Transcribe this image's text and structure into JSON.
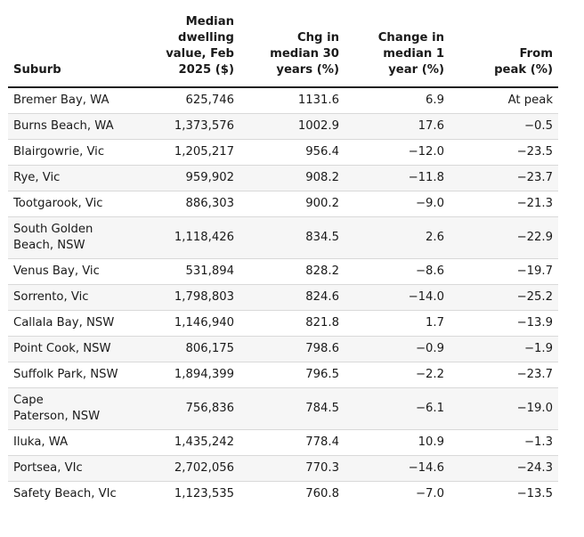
{
  "table": {
    "headers": [
      "Suburb",
      "Median dwelling value, Feb 2025 ($)",
      "Chg in median 30 years (%)",
      "Change in median 1 year (%)",
      "From peak (%)"
    ],
    "header_lines": [
      [
        "Suburb"
      ],
      [
        "Median",
        "dwelling",
        "value, Feb",
        "2025 ($)"
      ],
      [
        "Chg in",
        "median 30",
        "years (%)"
      ],
      [
        "Change in",
        "median 1",
        "year (%)"
      ],
      [
        "From",
        "peak (%)"
      ]
    ],
    "rows": [
      {
        "suburb": "Bremer Bay, WA",
        "value": "625,746",
        "chg30": "1131.6",
        "chg1": "6.9",
        "peak": "At peak"
      },
      {
        "suburb": "Burns Beach, WA",
        "value": "1,373,576",
        "chg30": "1002.9",
        "chg1": "17.6",
        "peak": "−0.5"
      },
      {
        "suburb": "Blairgowrie, Vic",
        "value": "1,205,217",
        "chg30": "956.4",
        "chg1": "−12.0",
        "peak": "−23.5"
      },
      {
        "suburb": "Rye, Vic",
        "value": "959,902",
        "chg30": "908.2",
        "chg1": "−11.8",
        "peak": "−23.7"
      },
      {
        "suburb": "Tootgarook, Vic",
        "value": "886,303",
        "chg30": "900.2",
        "chg1": "−9.0",
        "peak": "−21.3"
      },
      {
        "suburb": "South Golden Beach, NSW",
        "value": "1,118,426",
        "chg30": "834.5",
        "chg1": "2.6",
        "peak": "−22.9"
      },
      {
        "suburb": "Venus Bay, Vic",
        "value": "531,894",
        "chg30": "828.2",
        "chg1": "−8.6",
        "peak": "−19.7"
      },
      {
        "suburb": "Sorrento, Vic",
        "value": "1,798,803",
        "chg30": "824.6",
        "chg1": "−14.0",
        "peak": "−25.2"
      },
      {
        "suburb": "Callala Bay, NSW",
        "value": "1,146,940",
        "chg30": "821.8",
        "chg1": "1.7",
        "peak": "−13.9"
      },
      {
        "suburb": "Point Cook, NSW",
        "value": "806,175",
        "chg30": "798.6",
        "chg1": "−0.9",
        "peak": "−1.9"
      },
      {
        "suburb": "Suffolk Park, NSW",
        "value": "1,894,399",
        "chg30": "796.5",
        "chg1": "−2.2",
        "peak": "−23.7"
      },
      {
        "suburb": "Cape Paterson, NSW",
        "value": "756,836",
        "chg30": "784.5",
        "chg1": "−6.1",
        "peak": "−19.0"
      },
      {
        "suburb": "Iluka, WA",
        "value": "1,435,242",
        "chg30": "778.4",
        "chg1": "10.9",
        "peak": "−1.3"
      },
      {
        "suburb": "Portsea, VIc",
        "value": "2,702,056",
        "chg30": "770.3",
        "chg1": "−14.6",
        "peak": "−24.3"
      },
      {
        "suburb": "Safety Beach, VIc",
        "value": "1,123,535",
        "chg30": "760.8",
        "chg1": "−7.0",
        "peak": "−13.5"
      }
    ]
  }
}
